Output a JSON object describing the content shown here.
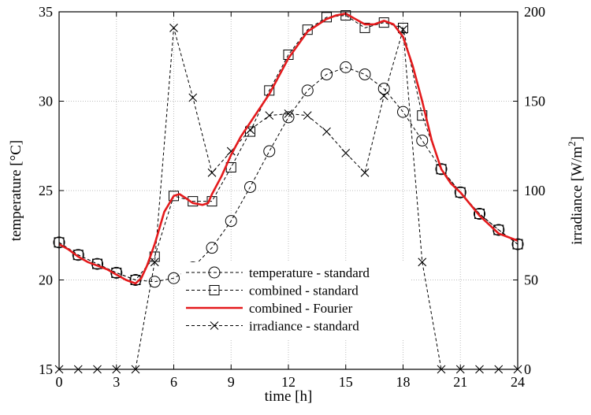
{
  "chart_data": {
    "type": "line",
    "title": "",
    "xlabel": "time [h]",
    "ylabel_left": "temperature [°C]",
    "ylabel_right_prefix": "irradiance [W/m",
    "ylabel_right_sup": "2",
    "ylabel_right_suffix": "]",
    "xlim": [
      0,
      24
    ],
    "ylim_left": [
      15,
      35
    ],
    "ylim_right": [
      0,
      200
    ],
    "grid": true,
    "legend_position": "bottom-center",
    "x_ticks": [
      "0",
      "3",
      "6",
      "9",
      "12",
      "15",
      "18",
      "21",
      "24"
    ],
    "y_left_ticks": [
      "15",
      "20",
      "25",
      "30",
      "35"
    ],
    "y_right_ticks": [
      "0",
      "50",
      "100",
      "150",
      "200"
    ],
    "series": [
      {
        "name": "temperature - standard",
        "axis": "left",
        "style": "dashed",
        "marker": "circle",
        "color": "#000000",
        "x": [
          0,
          1,
          2,
          3,
          4,
          5,
          6,
          7,
          8,
          9,
          10,
          11,
          12,
          13,
          14,
          15,
          16,
          17,
          18,
          19,
          20,
          21,
          22,
          23,
          24
        ],
        "values": [
          22.1,
          21.4,
          20.9,
          20.4,
          20.0,
          19.9,
          20.1,
          20.7,
          21.8,
          23.3,
          25.2,
          27.2,
          29.1,
          30.6,
          31.5,
          31.9,
          31.5,
          30.7,
          29.4,
          27.8,
          26.2,
          24.9,
          23.7,
          22.8,
          22.0
        ]
      },
      {
        "name": "combined - standard",
        "axis": "left",
        "style": "dashed",
        "marker": "square",
        "color": "#000000",
        "x": [
          0,
          1,
          2,
          3,
          4,
          5,
          6,
          7,
          8,
          9,
          10,
          11,
          12,
          13,
          14,
          15,
          16,
          17,
          18,
          19,
          20,
          21,
          22,
          23,
          24
        ],
        "values": [
          22.1,
          21.4,
          20.9,
          20.4,
          20.0,
          21.3,
          24.7,
          24.4,
          24.4,
          26.3,
          28.3,
          30.6,
          32.6,
          34.0,
          34.7,
          34.8,
          34.1,
          34.4,
          34.1,
          29.2,
          26.2,
          24.9,
          23.7,
          22.8,
          22.0
        ]
      },
      {
        "name": "combined - Fourier",
        "axis": "left",
        "style": "solid",
        "marker": "none",
        "color": "#e41a1c",
        "x": [
          0,
          0.5,
          1,
          1.5,
          2,
          2.5,
          3,
          3.5,
          4,
          4.3,
          4.6,
          5,
          5.5,
          6,
          6.3,
          6.6,
          7,
          7.5,
          7.8,
          8,
          8.5,
          9,
          9.5,
          10,
          11,
          12,
          13,
          14,
          14.5,
          15,
          15.5,
          16,
          16.5,
          17,
          17.5,
          18,
          18.5,
          19,
          19.5,
          20,
          20.5,
          21,
          22,
          23,
          24
        ],
        "values": [
          22.0,
          21.7,
          21.3,
          21.0,
          20.8,
          20.6,
          20.3,
          20.0,
          19.8,
          20.1,
          20.8,
          22.0,
          23.8,
          24.7,
          24.8,
          24.6,
          24.3,
          24.2,
          24.3,
          24.8,
          25.8,
          27.0,
          28.0,
          28.8,
          30.4,
          32.4,
          33.9,
          34.6,
          34.8,
          34.9,
          34.6,
          34.3,
          34.3,
          34.5,
          34.3,
          33.6,
          32.0,
          30.0,
          27.8,
          26.2,
          25.4,
          24.9,
          23.6,
          22.6,
          22.2
        ]
      },
      {
        "name": "irradiance - standard",
        "axis": "right",
        "style": "dashed",
        "marker": "x",
        "color": "#000000",
        "x": [
          0,
          1,
          2,
          3,
          4,
          5,
          6,
          7,
          8,
          9,
          10,
          11,
          12,
          13,
          14,
          15,
          16,
          17,
          18,
          19,
          20,
          21,
          22,
          23,
          24
        ],
        "values": [
          0,
          0,
          0,
          0,
          0,
          60,
          191,
          152,
          110,
          122,
          134,
          142,
          143,
          142,
          133,
          121,
          110,
          153,
          190,
          60,
          0,
          0,
          0,
          0,
          0
        ]
      }
    ]
  }
}
